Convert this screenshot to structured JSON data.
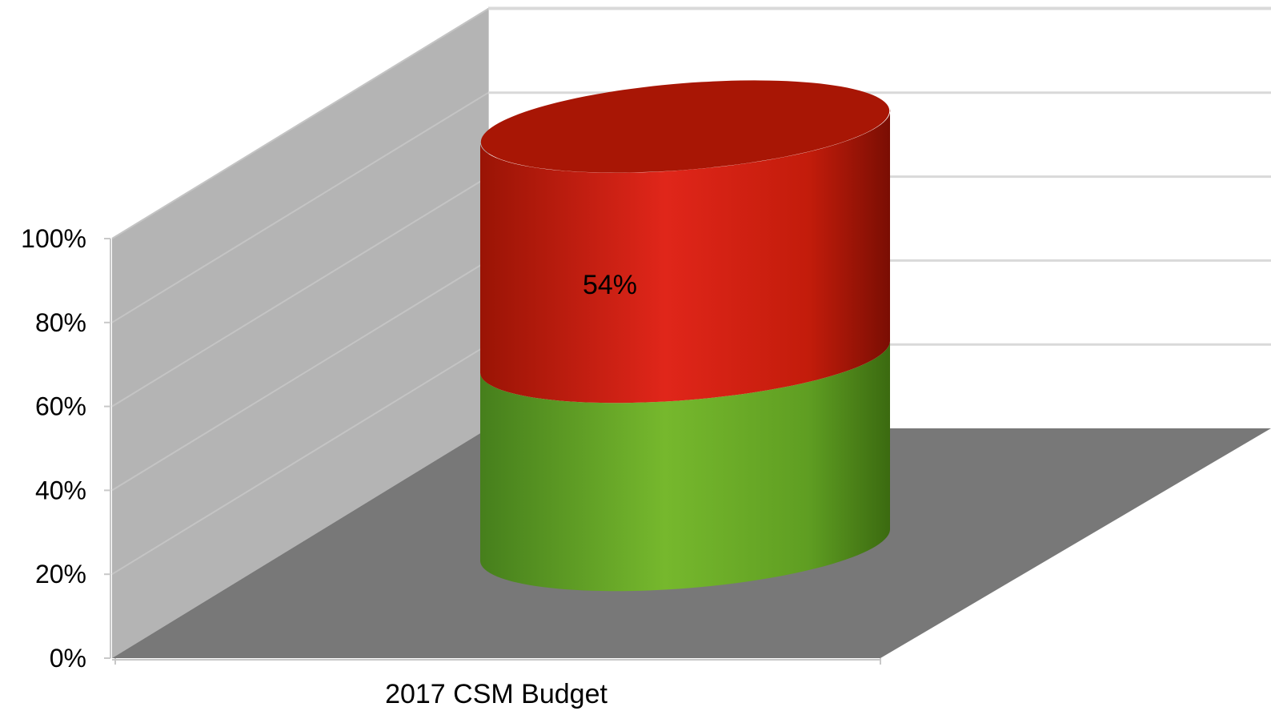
{
  "chart_data": {
    "type": "bar",
    "style": "3d-cylinder-stacked-100",
    "categories": [
      "2017 CSM Budget"
    ],
    "series": [
      {
        "values": [
          46
        ],
        "color": "#6aad2a"
      },
      {
        "values": [
          54
        ],
        "color": "#d0200f",
        "data_label": "54%"
      }
    ],
    "y_ticks": [
      "0%",
      "20%",
      "40%",
      "60%",
      "80%",
      "100%"
    ],
    "ylim": [
      0,
      100
    ],
    "grid": true,
    "legend": "none",
    "wall_color": "#b4b4b4",
    "floor_color": "#787878"
  }
}
